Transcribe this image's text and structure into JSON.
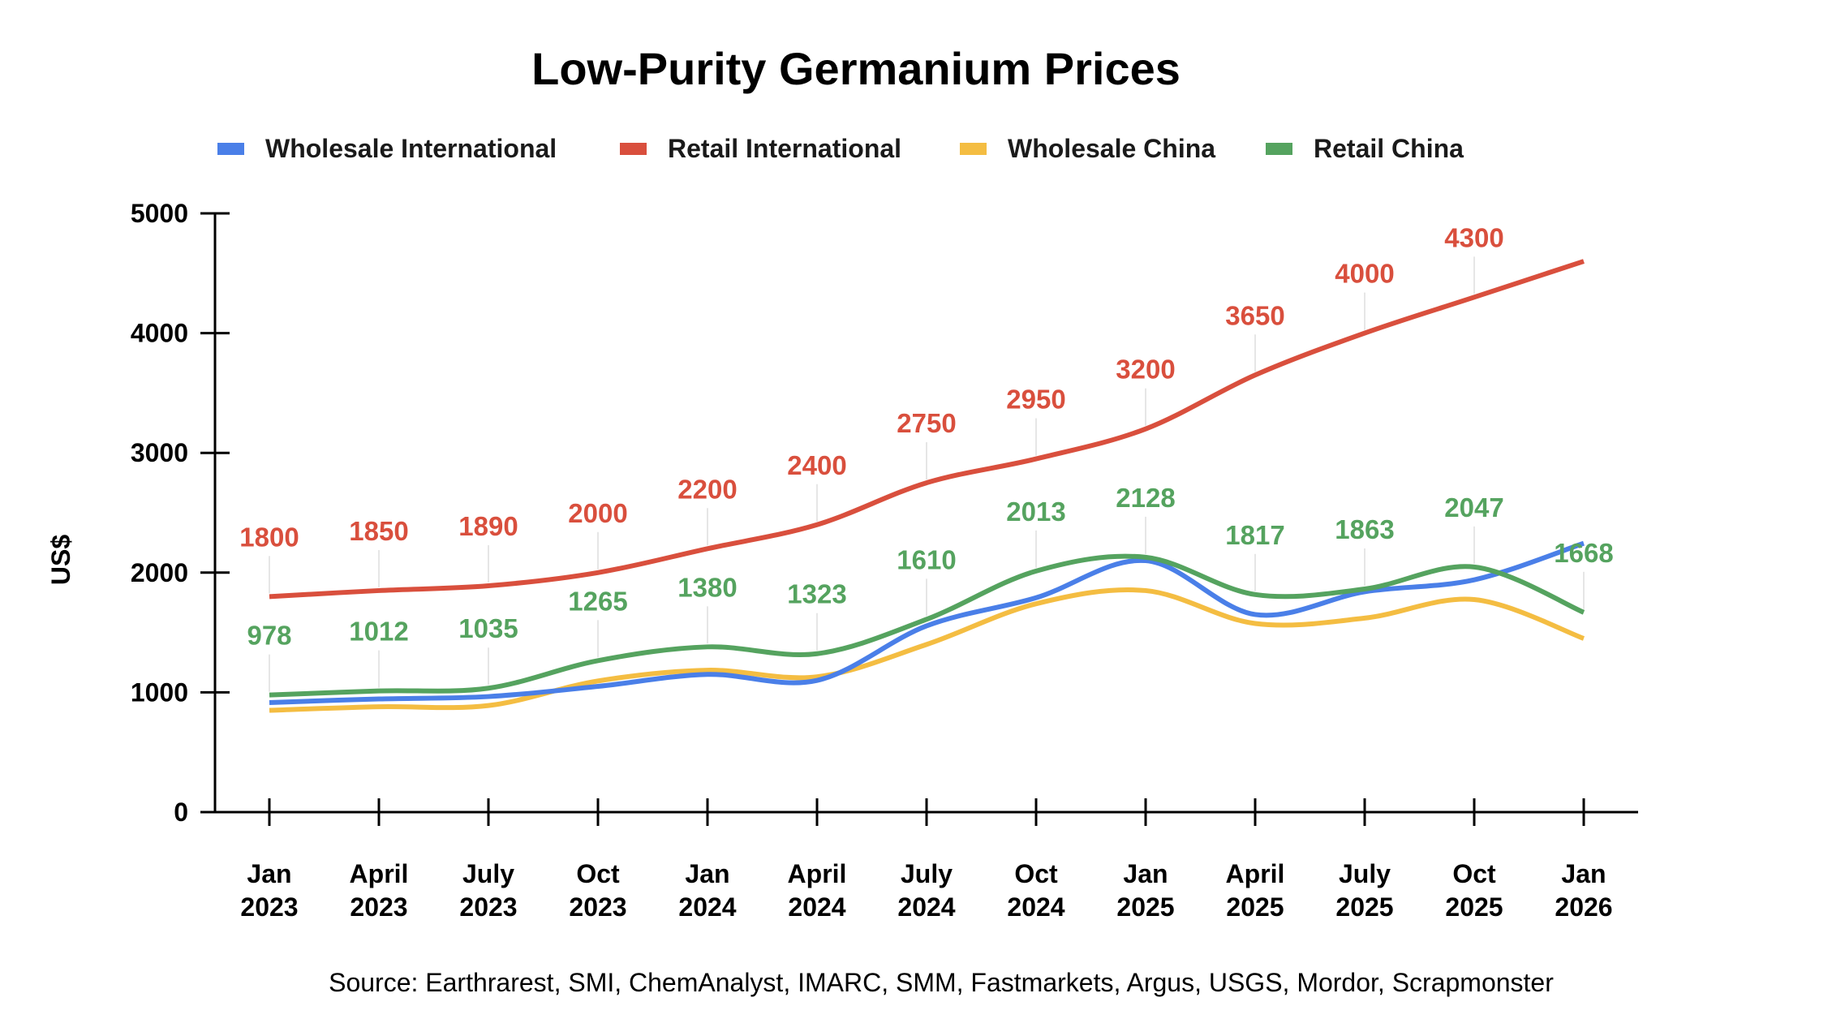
{
  "chart_data": {
    "type": "line",
    "title": "Low-Purity Germanium Prices",
    "xlabel": "",
    "ylabel": "US$",
    "ylim": [
      0,
      5000
    ],
    "yticks": [
      0,
      1000,
      2000,
      3000,
      4000,
      5000
    ],
    "grid": false,
    "legend_position": "top",
    "categories": [
      [
        "Jan",
        "2023"
      ],
      [
        "April",
        "2023"
      ],
      [
        "July",
        "2023"
      ],
      [
        "Oct",
        "2023"
      ],
      [
        "Jan",
        "2024"
      ],
      [
        "April",
        "2024"
      ],
      [
        "July",
        "2024"
      ],
      [
        "Oct",
        "2024"
      ],
      [
        "Jan",
        "2025"
      ],
      [
        "April",
        "2025"
      ],
      [
        "July",
        "2025"
      ],
      [
        "Oct",
        "2025"
      ],
      [
        "Jan",
        "2026"
      ]
    ],
    "series": [
      {
        "name": "Wholesale International",
        "color": "#4a7fe8",
        "values": [
          915,
          945,
          965,
          1050,
          1150,
          1100,
          1555,
          1790,
          2100,
          1650,
          1840,
          1940,
          2245
        ],
        "labels": [
          null,
          null,
          null,
          null,
          null,
          null,
          null,
          null,
          null,
          null,
          null,
          null,
          null
        ]
      },
      {
        "name": "Retail International",
        "color": "#d94f3d",
        "values": [
          1800,
          1850,
          1890,
          2000,
          2200,
          2400,
          2750,
          2950,
          3200,
          3650,
          4000,
          4300,
          4600
        ],
        "labels": [
          "1800",
          "1850",
          "1890",
          "2000",
          "2200",
          "2400",
          "2750",
          "2950",
          "3200",
          "3650",
          "4000",
          "4300",
          null
        ]
      },
      {
        "name": "Wholesale China",
        "color": "#f4bd42",
        "values": [
          850,
          880,
          890,
          1095,
          1185,
          1130,
          1400,
          1740,
          1850,
          1575,
          1620,
          1775,
          1450
        ],
        "labels": [
          null,
          null,
          null,
          null,
          null,
          null,
          null,
          null,
          null,
          null,
          null,
          null,
          null
        ]
      },
      {
        "name": "Retail China",
        "color": "#55a35f",
        "values": [
          978,
          1012,
          1035,
          1265,
          1380,
          1323,
          1610,
          2013,
          2128,
          1817,
          1863,
          2047,
          1668
        ],
        "labels": [
          "978",
          "1012",
          "1035",
          "1265",
          "1380",
          "1323",
          "1610",
          "2013",
          "2128",
          "1817",
          "1863",
          "2047",
          "1668"
        ]
      }
    ],
    "source": "Source: Earthrarest, SMI, ChemAnalyst, IMARC, SMM, Fastmarkets, Argus, USGS, Mordor, Scrapmonster"
  }
}
